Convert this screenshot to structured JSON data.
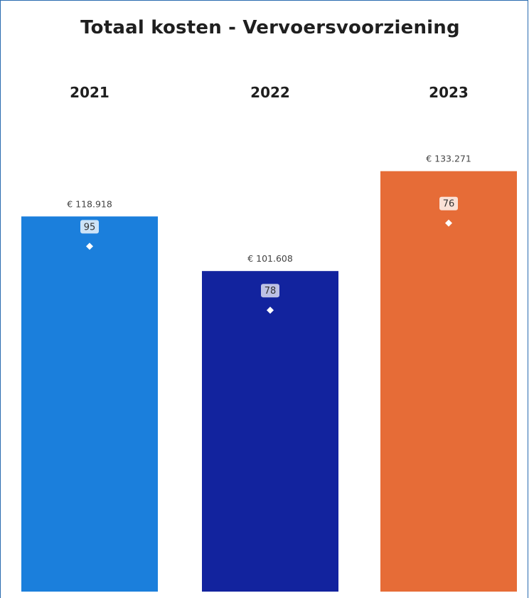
{
  "chart_data": {
    "type": "bar",
    "title": "Totaal kosten - Vervoersvoorziening",
    "categories": [
      "2021",
      "2022",
      "2023"
    ],
    "series": [
      {
        "values": [
          118918,
          101608,
          133271
        ],
        "labels": [
          "€ 118.918",
          "€ 101.608",
          "€ 133.271"
        ]
      },
      {
        "values": [
          95,
          78,
          76
        ]
      }
    ],
    "colors": [
      "#1b7fdc",
      "#12239e",
      "#e66c37"
    ],
    "ylim": [
      0,
      174000
    ],
    "grid": false,
    "legend": "none"
  }
}
